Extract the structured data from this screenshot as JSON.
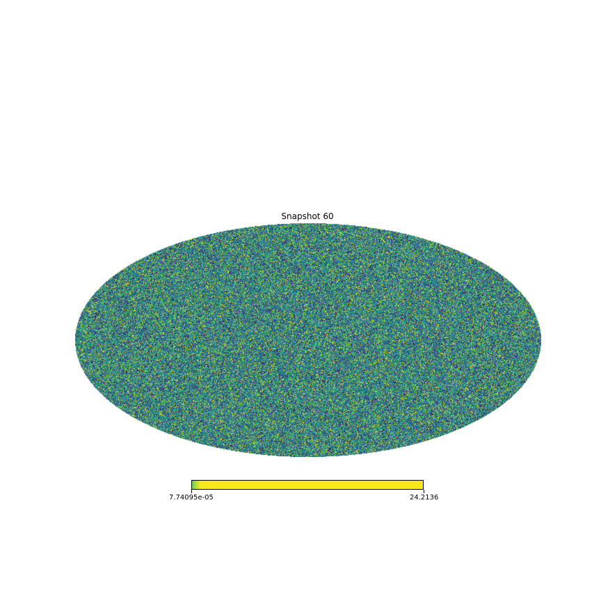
{
  "chart_data": {
    "type": "heatmap",
    "projection": "mollweide",
    "title": "Snapshot 60",
    "colormap": "viridis",
    "colorbar": {
      "orientation": "horizontal",
      "placement": "bottom",
      "min_label": "7.74095e-05",
      "max_label": "24.2136",
      "min": 7.74095e-05,
      "max": 24.2136
    },
    "dominant_colors": [
      "#3b528b",
      "#21908d",
      "#5dc963",
      "#fde725"
    ],
    "grid": false,
    "legend": "none"
  }
}
